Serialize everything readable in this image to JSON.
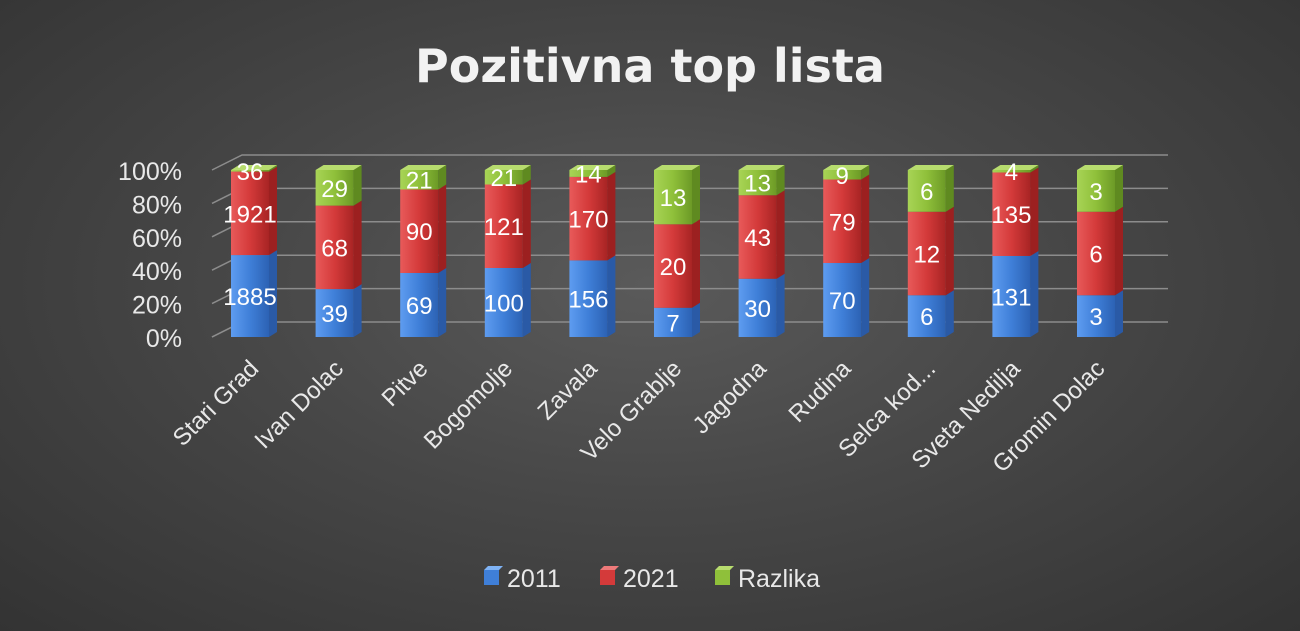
{
  "chart_data": {
    "type": "bar",
    "stacked": "percent",
    "title": "Pozitivna top lista",
    "categories": [
      "Stari Grad",
      "Ivan Dolac",
      "Pitve",
      "Bogomolje",
      "Zavala",
      "Velo Grablje",
      "Jagodna",
      "Rudina",
      "Selca kod...",
      "Sveta Nedilja",
      "Gromin Dolac"
    ],
    "series": [
      {
        "name": "2011",
        "color": "#3f7fd8",
        "values": [
          1885,
          39,
          69,
          100,
          156,
          7,
          30,
          70,
          6,
          131,
          3
        ]
      },
      {
        "name": "2021",
        "color": "#d43a3a",
        "values": [
          1921,
          68,
          90,
          121,
          170,
          20,
          43,
          79,
          12,
          135,
          6
        ]
      },
      {
        "name": "Razlika",
        "color": "#8fc03a",
        "values": [
          36,
          29,
          21,
          21,
          14,
          13,
          13,
          9,
          6,
          4,
          3
        ]
      }
    ],
    "yaxis": {
      "ticks": [
        "0%",
        "20%",
        "40%",
        "60%",
        "80%",
        "100%"
      ],
      "range": [
        0,
        100
      ],
      "unit": "%"
    },
    "grid": true,
    "legend_position": "bottom"
  }
}
